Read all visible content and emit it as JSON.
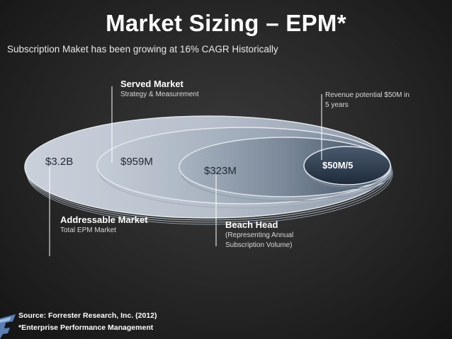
{
  "title": "Market Sizing – EPM*",
  "subtitle": "Subscription Maket has been growing at 16% CAGR Historically",
  "served_market": {
    "heading": "Served Market",
    "description": "Strategy & Measurement",
    "value": "$959M"
  },
  "addressable_market": {
    "heading": "Addressable Market",
    "description": "Total EPM Market",
    "value": "$3.2B"
  },
  "beach_head": {
    "heading": "Beach Head",
    "description_line1": "(Representing Annual",
    "description_line2": "Subscription Volume)",
    "value": "$323M"
  },
  "revenue_potential": {
    "line1": "Revenue potential $50M in",
    "line2": "5 years",
    "value": "$50M/5"
  },
  "footer": {
    "source": "Source: Forrester Research, Inc. (2012)",
    "footnote": "*Enterprise Performance Management"
  }
}
